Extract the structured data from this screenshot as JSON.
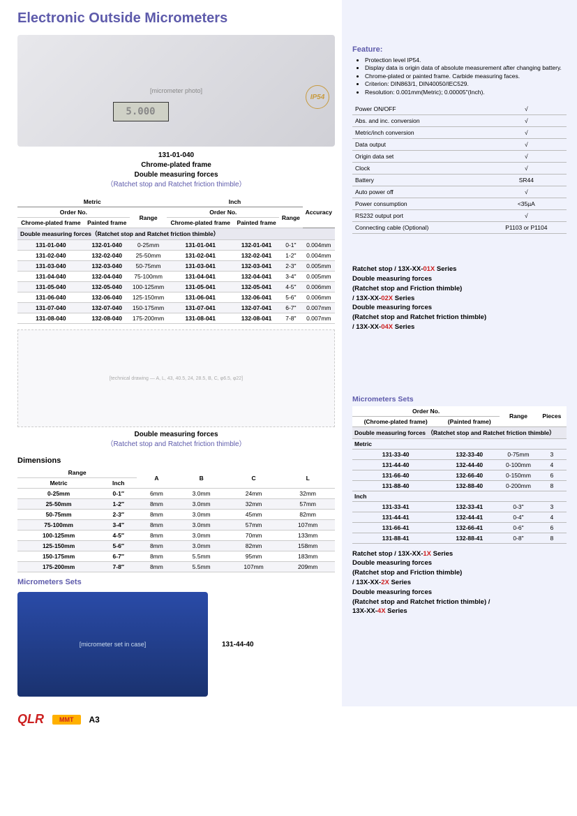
{
  "title": "Electronic Outside Micrometers",
  "product_caption": {
    "order": "131-01-040",
    "l1": "Chrome-plated frame",
    "l2": "Double measuring forces",
    "l3": "（Ratchet stop and Ratchet friction thimble）"
  },
  "lcd": "5.000",
  "ip54": "IP54",
  "main_table": {
    "top_headers": [
      "Metric",
      "Inch",
      "Accuracy"
    ],
    "sub_headers_row1": [
      "Order No.",
      "",
      "Order No.",
      ""
    ],
    "sub_headers_row2": [
      "Chrome-plated frame",
      "Painted frame",
      "Range",
      "Chrome-plated frame",
      "Painted frame",
      "Range",
      ""
    ],
    "group_label": "Double measuring forces（Ratchet stop and Ratchet friction thimble）",
    "rows": [
      [
        "131-01-040",
        "132-01-040",
        "0-25mm",
        "131-01-041",
        "132-01-041",
        "0-1\"",
        "0.004mm"
      ],
      [
        "131-02-040",
        "132-02-040",
        "25-50mm",
        "131-02-041",
        "132-02-041",
        "1-2\"",
        "0.004mm"
      ],
      [
        "131-03-040",
        "132-03-040",
        "50-75mm",
        "131-03-041",
        "132-03-041",
        "2-3\"",
        "0.005mm"
      ],
      [
        "131-04-040",
        "132-04-040",
        "75-100mm",
        "131-04-041",
        "132-04-041",
        "3-4\"",
        "0.005mm"
      ],
      [
        "131-05-040",
        "132-05-040",
        "100-125mm",
        "131-05-041",
        "132-05-041",
        "4-5\"",
        "0.006mm"
      ],
      [
        "131-06-040",
        "132-06-040",
        "125-150mm",
        "131-06-041",
        "132-06-041",
        "5-6\"",
        "0.006mm"
      ],
      [
        "131-07-040",
        "132-07-040",
        "150-175mm",
        "131-07-041",
        "132-07-041",
        "6-7\"",
        "0.007mm"
      ],
      [
        "131-08-040",
        "132-08-040",
        "175-200mm",
        "131-08-041",
        "132-08-041",
        "7-8\"",
        "0.007mm"
      ]
    ]
  },
  "dim_caption_l1": "Double measuring forces",
  "dim_caption_l2": "（Ratchet stop and Ratchet friction thimble）",
  "dimensions_title": "Dimensions",
  "dim_table": {
    "headers": [
      "Range",
      "",
      "A",
      "B",
      "C",
      "L"
    ],
    "subheaders": [
      "Metric",
      "Inch",
      "",
      "",
      "",
      ""
    ],
    "rows": [
      [
        "0-25mm",
        "0-1″",
        "6mm",
        "3.0mm",
        "24mm",
        "32mm"
      ],
      [
        "25-50mm",
        "1-2″",
        "8mm",
        "3.0mm",
        "32mm",
        "57mm"
      ],
      [
        "50-75mm",
        "2-3″",
        "8mm",
        "3.0mm",
        "45mm",
        "82mm"
      ],
      [
        "75-100mm",
        "3-4″",
        "8mm",
        "3.0mm",
        "57mm",
        "107mm"
      ],
      [
        "100-125mm",
        "4-5″",
        "8mm",
        "3.0mm",
        "70mm",
        "133mm"
      ],
      [
        "125-150mm",
        "5-6″",
        "8mm",
        "3.0mm",
        "82mm",
        "158mm"
      ],
      [
        "150-175mm",
        "6-7″",
        "8mm",
        "5.5mm",
        "95mm",
        "183mm"
      ],
      [
        "175-200mm",
        "7-8″",
        "8mm",
        "5.5mm",
        "107mm",
        "209mm"
      ]
    ]
  },
  "sets_title": "Micrometers Sets",
  "sets_order": "131-44-40",
  "footer": {
    "brand": "QLR",
    "mmt": "MMT",
    "page": "A3"
  },
  "feature_heading": "Feature:",
  "features": [
    "Protection level IP54.",
    "Display data is origin data of absolute measurement after changing battery.",
    "Chrome-plated or painted frame. Carbide measuring faces.",
    "Criterion: DIN863/1, DIN40050/IEC529.",
    "Resolution: 0.001mm(Metric); 0.00005\"(Inch)."
  ],
  "spec_rows": [
    [
      "Power ON/OFF",
      "√"
    ],
    [
      "Abs. and inc. conversion",
      "√"
    ],
    [
      "Metric/inch conversion",
      "√"
    ],
    [
      "Data output",
      "√"
    ],
    [
      "Origin data set",
      "√"
    ],
    [
      "Clock",
      "√"
    ],
    [
      "Battery",
      "SR44"
    ],
    [
      "Auto power off",
      "√"
    ],
    [
      "Power consumption",
      "<35µA"
    ],
    [
      "RS232 output port",
      "√"
    ],
    [
      "Connecting cable (Optional)",
      "P1103 or P1104"
    ]
  ],
  "series1": [
    "Ratchet stop / 13X-XX-01X Series",
    "Double measuring forces",
    "(Ratchet stop and Friction thimble)",
    "/ 13X-XX-02X Series",
    "Double measuring forces",
    "(Ratchet stop and Ratchet friction thimble)",
    "/ 13X-XX-04X Series"
  ],
  "sets_heading": "Micrometers Sets",
  "sets_table": {
    "h1": "Order No.",
    "h2": [
      "(Chrome-plated frame)",
      "(Painted frame)",
      "Range",
      "Pieces"
    ],
    "group": "Double measuring forces （Ratchet stop and Ratchet friction thimble）",
    "metric_label": "Metric",
    "metric_rows": [
      [
        "131-33-40",
        "132-33-40",
        "0-75mm",
        "3"
      ],
      [
        "131-44-40",
        "132-44-40",
        "0-100mm",
        "4"
      ],
      [
        "131-66-40",
        "132-66-40",
        "0-150mm",
        "6"
      ],
      [
        "131-88-40",
        "132-88-40",
        "0-200mm",
        "8"
      ]
    ],
    "inch_label": "Inch",
    "inch_rows": [
      [
        "131-33-41",
        "132-33-41",
        "0-3\"",
        "3"
      ],
      [
        "131-44-41",
        "132-44-41",
        "0-4\"",
        "4"
      ],
      [
        "131-66-41",
        "132-66-41",
        "0-6\"",
        "6"
      ],
      [
        "131-88-41",
        "132-88-41",
        "0-8\"",
        "8"
      ]
    ]
  },
  "series2": [
    "Ratchet stop / 13X-XX-1X Series",
    "Double measuring forces",
    "(Ratchet stop and Friction thimble)",
    "/ 13X-XX-2X Series",
    "Double measuring forces",
    "(Ratchet stop and Ratchet friction thimble) /",
    "13X-XX-4X Series"
  ],
  "placeholder_product": "[micrometer photo]",
  "placeholder_dim": "[technical drawing — A, L, 43, 40.5, 24, 28.5, B, C, φ6.5, φ22]",
  "placeholder_sets": "[micrometer set in case]"
}
